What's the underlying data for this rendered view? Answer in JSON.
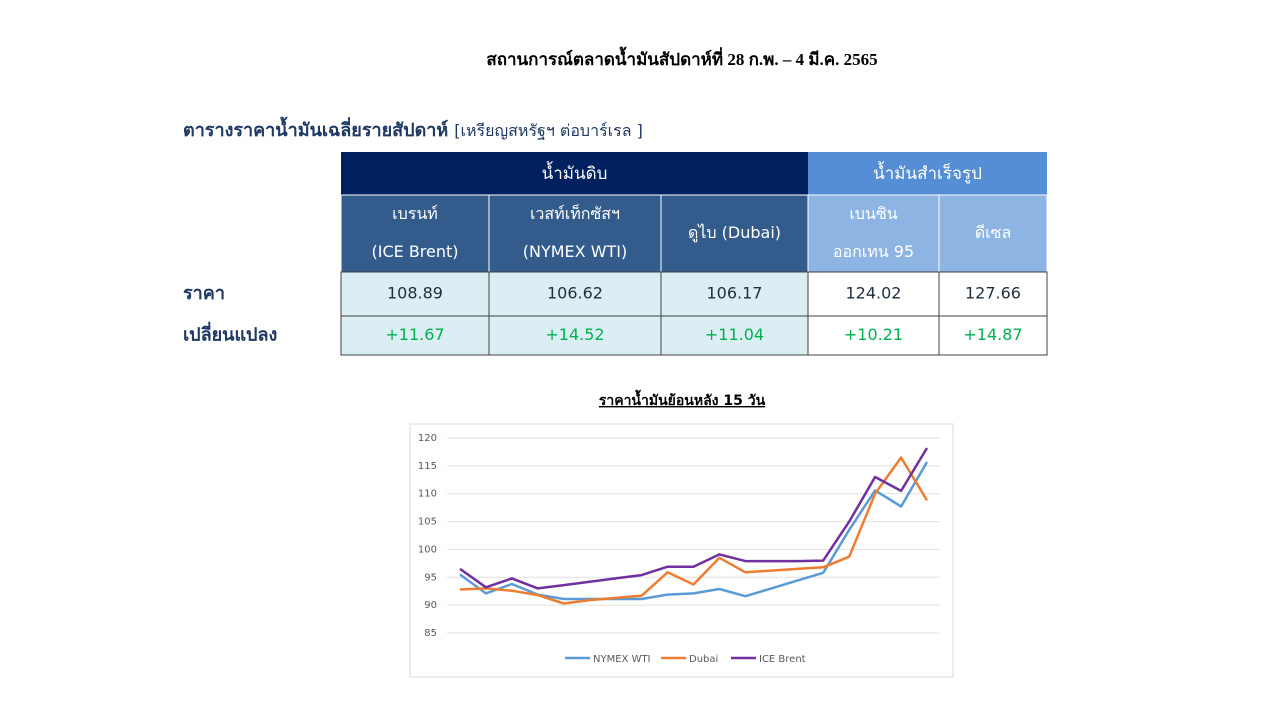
{
  "title": "สถานการณ์ตลาดน้ำมันสัปดาห์ที่ 28 ก.พ. – 4 มี.ค. 2565",
  "subtitle": {
    "bold": "ตารางราคาน้ำมันเฉลี่ยรายสัปดาห์",
    "unit": "[เหรียญสหรัฐฯ ต่อบาร์เรล ]"
  },
  "table": {
    "header_groups": [
      "น้ำมันดิบ",
      "น้ำมันสำเร็จรูป"
    ],
    "columns": [
      [
        "เบรนท์",
        "(ICE Brent)"
      ],
      [
        "เวสท์เท็กซัสฯ",
        "(NYMEX WTI)"
      ],
      [
        "ดูไบ (Dubai)"
      ],
      [
        "เบนซิน",
        "ออกเทน  95"
      ],
      [
        "ดีเซล"
      ]
    ],
    "rows": [
      {
        "label": "ราคา",
        "values": [
          "108.89",
          "106.62",
          "106.17",
          "124.02",
          "127.66"
        ]
      },
      {
        "label": "เปลี่ยนแปลง",
        "values": [
          "+11.67",
          "+14.52",
          "+11.04",
          "+10.21",
          "+14.87"
        ]
      }
    ]
  },
  "chart_data": {
    "type": "line",
    "title": "ราคาน้ำมันย้อนหลัง 15 วัน",
    "categories": [
      null,
      null,
      null,
      null,
      null,
      null,
      null,
      null,
      null,
      null,
      null,
      null,
      null,
      null,
      null,
      null,
      null,
      null,
      null
    ],
    "series": [
      {
        "name": "NYMEX WTI",
        "color": "#5b9bd5",
        "values": [
          95.5,
          92.1,
          93.8,
          91.9,
          91.1,
          91.1,
          91.1,
          91.1,
          91.9,
          92.1,
          92.9,
          91.6,
          93.0,
          94.4,
          95.8,
          103.5,
          110.6,
          107.7,
          115.7
        ]
      },
      {
        "name": "Dubai",
        "color": "#ed7d31",
        "values": [
          92.8,
          93.0,
          92.6,
          91.8,
          90.3,
          90.9,
          91.3,
          91.7,
          95.9,
          93.7,
          98.5,
          95.9,
          96.2,
          96.5,
          96.8,
          98.7,
          110.0,
          116.5,
          108.8
        ]
      },
      {
        "name": "ICE Brent",
        "color": "#7030a0",
        "values": [
          96.5,
          93.2,
          94.8,
          93.0,
          93.6,
          94.2,
          94.8,
          95.4,
          96.9,
          96.9,
          99.1,
          97.9,
          97.9,
          97.9,
          98.0,
          105.0,
          113.0,
          110.5,
          118.2
        ]
      }
    ],
    "ylim": [
      85,
      120
    ],
    "yticks": [
      85,
      90,
      95,
      100,
      105,
      110,
      115,
      120
    ],
    "grid": true,
    "legend": "bottom"
  }
}
